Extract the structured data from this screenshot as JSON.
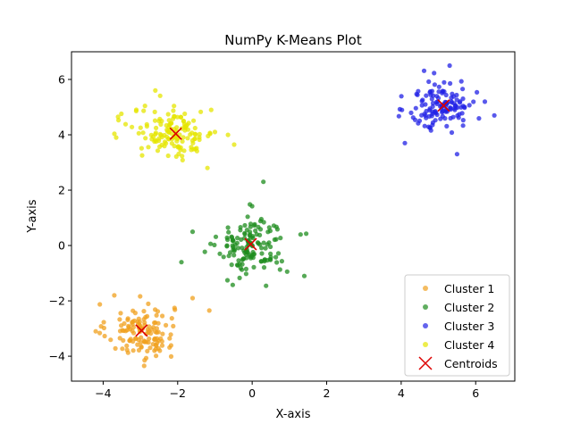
{
  "chart_data": {
    "type": "scatter",
    "title": "NumPy K-Means Plot",
    "xlabel": "X-axis",
    "ylabel": "Y-axis",
    "xlim": [
      -4.85,
      7.05
    ],
    "ylim": [
      -4.9,
      7.0
    ],
    "xticks": [
      -4,
      -2,
      0,
      2,
      4,
      6
    ],
    "yticks": [
      -4,
      -2,
      0,
      2,
      4,
      6
    ],
    "xtick_labels": [
      "−4",
      "−2",
      "0",
      "2",
      "4",
      "6"
    ],
    "ytick_labels": [
      "−4",
      "−2",
      "0",
      "2",
      "4",
      "6"
    ],
    "grid": false,
    "legend_position": "lower-right",
    "series": [
      {
        "name": "Cluster 1",
        "color": "#f0a01e",
        "center": [
          -3.0,
          -3.1
        ],
        "spread": [
          0.45,
          0.5
        ],
        "count": 130,
        "extra_points": [
          [
            -1.15,
            -2.35
          ],
          [
            -1.6,
            -1.9
          ],
          [
            -3.7,
            -1.8
          ],
          [
            -2.9,
            -4.35
          ],
          [
            -4.2,
            -3.1
          ]
        ]
      },
      {
        "name": "Cluster 2",
        "color": "#1e8c1e",
        "center": [
          0.0,
          0.0
        ],
        "spread": [
          0.45,
          0.55
        ],
        "count": 140,
        "extra_points": [
          [
            1.4,
            -1.1
          ],
          [
            0.3,
            2.3
          ],
          [
            -1.9,
            -0.6
          ],
          [
            -1.6,
            0.5
          ],
          [
            1.3,
            0.4
          ]
        ]
      },
      {
        "name": "Cluster 3",
        "color": "#2222e6",
        "center": [
          5.1,
          5.05
        ],
        "spread": [
          0.45,
          0.45
        ],
        "count": 130,
        "extra_points": [
          [
            5.5,
            3.3
          ],
          [
            6.5,
            4.7
          ],
          [
            4.1,
            3.7
          ],
          [
            5.3,
            6.5
          ]
        ]
      },
      {
        "name": "Cluster 4",
        "color": "#e6e600",
        "center": [
          -2.1,
          4.05
        ],
        "spread": [
          0.55,
          0.45
        ],
        "count": 140,
        "extra_points": [
          [
            -3.6,
            4.65
          ],
          [
            -1.1,
            4.9
          ],
          [
            -1.2,
            2.8
          ],
          [
            -3.65,
            3.9
          ],
          [
            -1.0,
            4.1
          ],
          [
            -2.6,
            5.6
          ]
        ]
      }
    ],
    "centroids": {
      "name": "Centroids",
      "color": "#dd0000",
      "points": [
        [
          -2.97,
          -3.07
        ],
        [
          -0.04,
          0.05
        ],
        [
          5.14,
          5.06
        ],
        [
          -2.05,
          4.04
        ]
      ]
    }
  }
}
